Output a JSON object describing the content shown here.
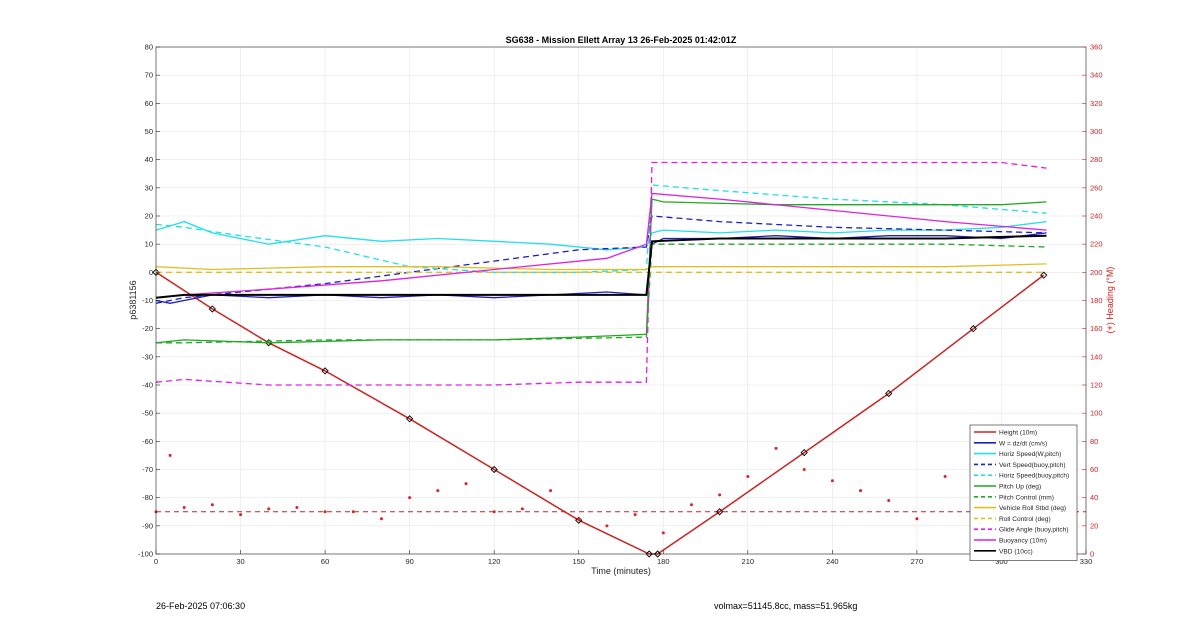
{
  "chart_data": {
    "type": "line",
    "title": "SG638 - Mission Ellett Array 13 26-Feb-2025 01:42:01Z",
    "xlabel": "Time (minutes)",
    "ylabel_left": "p6381156",
    "ylabel_right": "(+) Heading (°M)",
    "xlim": [
      0,
      330
    ],
    "ylim_left": [
      -100,
      80
    ],
    "ylim_right": [
      0,
      360
    ],
    "xticks": [
      0,
      30,
      60,
      90,
      120,
      150,
      180,
      210,
      240,
      270,
      300,
      330
    ],
    "yticks_left": [
      -100,
      -90,
      -80,
      -70,
      -60,
      -50,
      -40,
      -30,
      -20,
      -10,
      0,
      10,
      20,
      30,
      40,
      50,
      60,
      70,
      80
    ],
    "yticks_right": [
      0,
      20,
      40,
      60,
      80,
      100,
      120,
      140,
      160,
      180,
      200,
      220,
      240,
      260,
      280,
      300,
      320,
      340,
      360
    ],
    "grid": true,
    "legend_position": "bottom-right",
    "legend": [
      {
        "label": "Height (10m)",
        "color": "#cc2222",
        "style": "solid"
      },
      {
        "label": "W = dz/dt (cm/s)",
        "color": "#1f1fbf",
        "style": "solid"
      },
      {
        "label": "Horiz Speed(W,pitch)",
        "color": "#22e0e8",
        "style": "solid"
      },
      {
        "label": "Vert Speed(buoy,pitch)",
        "color": "#1f1fbf",
        "style": "dashed"
      },
      {
        "label": "Horiz Speed(buoy,pitch)",
        "color": "#22e0e8",
        "style": "dashed"
      },
      {
        "label": "Pitch Up (deg)",
        "color": "#22a822",
        "style": "solid"
      },
      {
        "label": "Pitch Control (mm)",
        "color": "#22a822",
        "style": "dashed"
      },
      {
        "label": "Vehicle Roll Stbd (deg)",
        "color": "#e0c020",
        "style": "solid"
      },
      {
        "label": "Roll Control (deg)",
        "color": "#e0c020",
        "style": "dashed"
      },
      {
        "label": "Glide Angle (buoy,pitch)",
        "color": "#e020e0",
        "style": "dashed"
      },
      {
        "label": "Buoyancy (10m)",
        "color": "#e020e0",
        "style": "solid"
      },
      {
        "label": "VBD (10cc)",
        "color": "#000000",
        "style": "solid"
      }
    ],
    "series": [
      {
        "name": "Height (10m)",
        "axis": "left",
        "x": [
          0,
          20,
          40,
          60,
          90,
          120,
          150,
          175,
          178,
          200,
          230,
          260,
          290,
          315
        ],
        "y": [
          0,
          -13,
          -25,
          -35,
          -52,
          -70,
          -88,
          -100,
          -100,
          -85,
          -64,
          -43,
          -20,
          -1
        ]
      },
      {
        "name": "W = dz/dt (cm/s)",
        "axis": "left",
        "x": [
          0,
          5,
          10,
          20,
          40,
          60,
          80,
          100,
          120,
          140,
          160,
          174,
          176,
          180,
          200,
          220,
          240,
          260,
          280,
          300,
          316
        ],
        "y": [
          -10,
          -11,
          -10,
          -8,
          -9,
          -8,
          -9,
          -8,
          -9,
          -8,
          -7,
          -8,
          10,
          12,
          12,
          13,
          12,
          13,
          13,
          12,
          14
        ]
      },
      {
        "name": "Horiz Speed(W,pitch)",
        "axis": "left",
        "x": [
          0,
          10,
          20,
          40,
          60,
          80,
          100,
          120,
          140,
          160,
          174,
          176,
          180,
          200,
          220,
          240,
          260,
          280,
          300,
          316
        ],
        "y": [
          15,
          18,
          14,
          10,
          13,
          11,
          12,
          11,
          10,
          8,
          9,
          14,
          15,
          14,
          15,
          14,
          15,
          15,
          16,
          18
        ]
      },
      {
        "name": "Vert Speed(buoy,pitch)",
        "axis": "left",
        "x": [
          0,
          10,
          30,
          60,
          90,
          120,
          150,
          174,
          176,
          200,
          240,
          280,
          316
        ],
        "y": [
          -11,
          -9,
          -7,
          -4,
          0,
          4,
          8,
          9,
          20,
          18,
          16,
          15,
          14
        ]
      },
      {
        "name": "Horiz Speed(buoy,pitch)",
        "axis": "left",
        "x": [
          0,
          10,
          30,
          60,
          90,
          120,
          150,
          174,
          176,
          200,
          240,
          280,
          316
        ],
        "y": [
          17,
          16,
          13,
          9,
          2,
          0,
          0,
          1,
          31,
          29,
          26,
          24,
          21
        ]
      },
      {
        "name": "Pitch Up (deg)",
        "axis": "left",
        "x": [
          0,
          10,
          40,
          80,
          120,
          150,
          174,
          176,
          180,
          220,
          260,
          300,
          316
        ],
        "y": [
          -25,
          -24,
          -25,
          -24,
          -24,
          -23,
          -22,
          26,
          25,
          24,
          24,
          24,
          25
        ]
      },
      {
        "name": "Pitch Control (mm)",
        "axis": "left",
        "x": [
          0,
          10,
          60,
          120,
          174,
          176,
          200,
          240,
          280,
          316
        ],
        "y": [
          -25,
          -25,
          -24,
          -24,
          -23,
          10,
          10,
          10,
          10,
          9
        ]
      },
      {
        "name": "Vehicle Roll Stbd (deg)",
        "axis": "left",
        "x": [
          0,
          20,
          60,
          100,
          140,
          174,
          176,
          200,
          240,
          280,
          316
        ],
        "y": [
          2,
          1,
          2,
          2,
          1,
          1,
          2,
          2,
          2,
          2,
          3
        ]
      },
      {
        "name": "Roll Control (deg)",
        "axis": "left",
        "x": [
          0,
          20,
          60,
          100,
          140,
          174,
          176,
          200,
          240,
          280,
          316
        ],
        "y": [
          0,
          0,
          0,
          0,
          0,
          0,
          0,
          0,
          0,
          0,
          0
        ]
      },
      {
        "name": "Glide Angle (buoy,pitch)",
        "axis": "left",
        "x": [
          0,
          10,
          40,
          80,
          120,
          150,
          174,
          176,
          180,
          220,
          260,
          300,
          316
        ],
        "y": [
          -39,
          -38,
          -40,
          -40,
          -40,
          -39,
          -39,
          39,
          39,
          39,
          39,
          39,
          37
        ]
      },
      {
        "name": "Buoyancy (10m)",
        "axis": "left",
        "x": [
          0,
          10,
          40,
          80,
          120,
          160,
          174,
          176,
          200,
          240,
          280,
          316
        ],
        "y": [
          -9,
          -8,
          -6,
          -3,
          1,
          5,
          10,
          28,
          26,
          22,
          18,
          15
        ]
      },
      {
        "name": "VBD (10cc)",
        "axis": "left",
        "x": [
          0,
          10,
          30,
          60,
          90,
          120,
          150,
          174,
          176,
          200,
          240,
          280,
          316
        ],
        "y": [
          -9,
          -8,
          -8,
          -8,
          -8,
          -8,
          -8,
          -8,
          11,
          12,
          12,
          12,
          13
        ]
      },
      {
        "name": "Heading",
        "axis": "right",
        "x": [
          0,
          5,
          10,
          20,
          30,
          40,
          50,
          60,
          70,
          80,
          90,
          100,
          110,
          120,
          130,
          140,
          150,
          160,
          170,
          180,
          190,
          200,
          210,
          220,
          230,
          240,
          250,
          260,
          270,
          280,
          290,
          300,
          310,
          316
        ],
        "y": [
          30,
          70,
          33,
          35,
          28,
          32,
          33,
          30,
          30,
          25,
          40,
          45,
          50,
          30,
          32,
          45,
          25,
          20,
          28,
          15,
          35,
          42,
          55,
          75,
          60,
          52,
          45,
          38,
          25,
          55,
          45,
          50,
          18,
          30
        ]
      }
    ],
    "reference_lines": [
      {
        "axis": "right",
        "y": 30,
        "color": "#cc2222",
        "style": "dashed"
      }
    ]
  },
  "footer": {
    "timestamp": "26-Feb-2025 07:06:30",
    "stats": "volmax=51145.8cc, mass=51.965kg"
  }
}
